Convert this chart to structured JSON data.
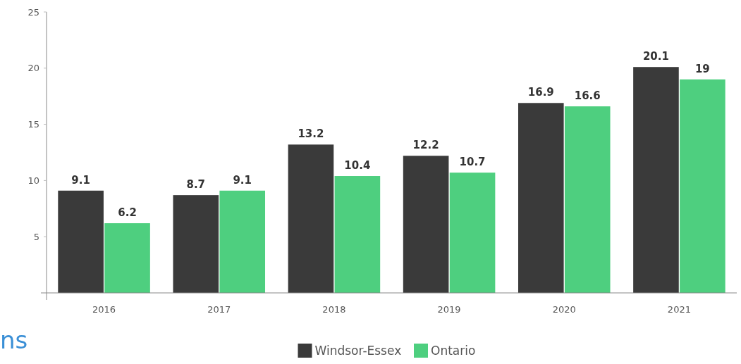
{
  "chart_data": {
    "type": "bar",
    "categories": [
      "2016",
      "2017",
      "2018",
      "2019",
      "2020",
      "2021"
    ],
    "series": [
      {
        "name": "Windsor-Essex",
        "color": "#3a3a3a",
        "values": [
          9.1,
          8.7,
          13.2,
          12.2,
          16.9,
          20.1
        ]
      },
      {
        "name": "Ontario",
        "color": "#4ecf7f",
        "values": [
          6.2,
          9.1,
          10.4,
          10.7,
          16.6,
          19
        ]
      }
    ],
    "ylim": [
      0,
      25
    ],
    "yticks": [
      5,
      10,
      15,
      20,
      25
    ],
    "data_labels": true,
    "legend": "bottom",
    "grid": false,
    "annotations": [
      "ns"
    ]
  }
}
